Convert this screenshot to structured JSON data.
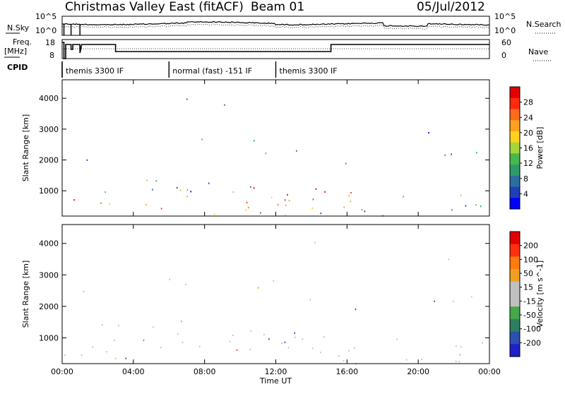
{
  "header": {
    "station_title": "Christmas Valley East (fitACF)",
    "beam": "Beam 01",
    "date": "05/Jul/2012"
  },
  "top_panels": {
    "nsky_label": "N.Sky",
    "nsearch_label": "N.Search",
    "nsky_ticks": [
      "10^5",
      "10^0"
    ],
    "nsearch_ticks": [
      "10^5",
      "10^0"
    ],
    "freq_label": "Freq.",
    "freq_unit": "[MHz]",
    "freq_ticks": [
      "18",
      "8"
    ],
    "nave_label": "Nave",
    "nave_ticks": [
      "60",
      "0"
    ],
    "cpid_label": "CPID",
    "cpid_segments": [
      {
        "label": "themis 3300 IF",
        "start_h": 0.0,
        "end_h": 6.0
      },
      {
        "label": "normal (fast) -151 IF",
        "start_h": 6.0,
        "end_h": 12.0
      },
      {
        "label": "themis 3300 IF",
        "start_h": 12.0,
        "end_h": 24.0
      }
    ]
  },
  "chart_data": [
    {
      "type": "heatmap",
      "title": "",
      "ylabel": "Slant Range [km]",
      "xlabel": "",
      "x_ticks": [
        "00:00",
        "04:00",
        "08:00",
        "12:00",
        "16:00",
        "20:00",
        "00:00"
      ],
      "y_ticks": [
        1000,
        2000,
        3000,
        4000
      ],
      "xlim_hours": [
        0,
        24
      ],
      "ylim": [
        180,
        4600
      ],
      "colorbar": {
        "label": "Power [dB]",
        "ticks": [
          4,
          8,
          12,
          16,
          20,
          24,
          28
        ],
        "range": [
          0,
          32
        ],
        "colors": [
          "#0000ff",
          "#1f3fb8",
          "#2a6fa0",
          "#2f9a6a",
          "#48b84e",
          "#a7d43a",
          "#ffd21e",
          "#ffa01e",
          "#ff6a1a",
          "#ff2a10",
          "#e00000"
        ]
      }
    },
    {
      "type": "heatmap",
      "title": "",
      "ylabel": "Slant Range [km]",
      "xlabel": "Time UT",
      "x_ticks": [
        "00:00",
        "04:00",
        "08:00",
        "12:00",
        "16:00",
        "20:00",
        "00:00"
      ],
      "y_ticks": [
        1000,
        2000,
        3000,
        4000
      ],
      "xlim_hours": [
        0,
        24
      ],
      "ylim": [
        180,
        4600
      ],
      "colorbar": {
        "label": "Velocity [m s^-1]",
        "ticks": [
          "200",
          "100",
          "50",
          "15",
          "-15",
          "-50",
          "-100",
          "-200"
        ],
        "colors": [
          "#2020c8",
          "#2c4fb0",
          "#2d7f60",
          "#46a84a",
          "#c0c0c0",
          "#c0c0c0",
          "#f0a020",
          "#ff7a10",
          "#ff3010",
          "#e00000"
        ]
      }
    }
  ]
}
